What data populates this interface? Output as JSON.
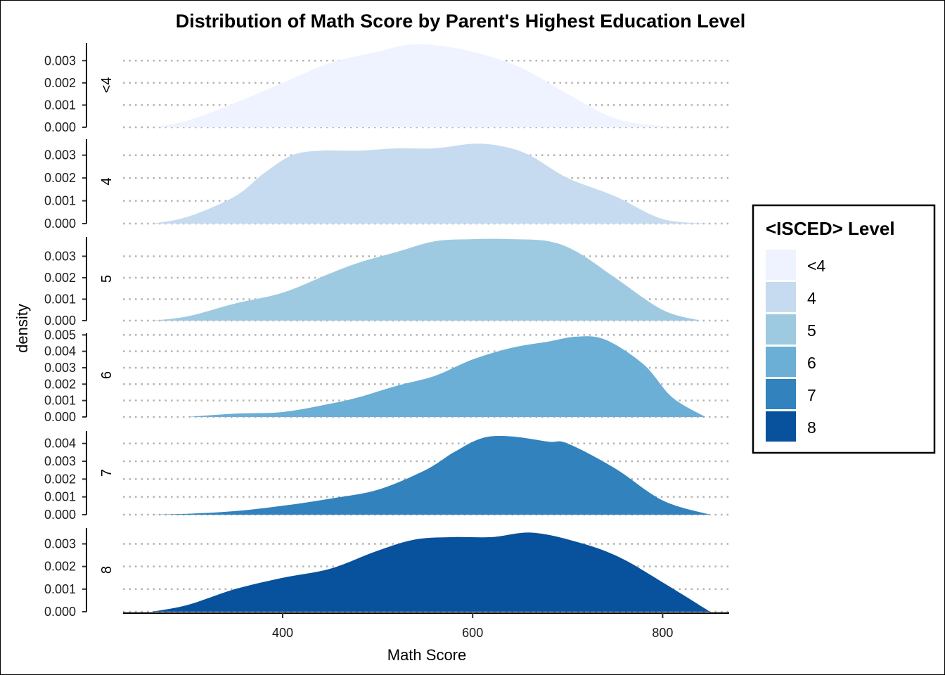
{
  "chart_data": {
    "type": "area",
    "title": "Distribution of Math Score by Parent's Highest Education Level",
    "xlabel": "Math Score",
    "ylabel": "density",
    "x_ticks": [
      400,
      600,
      800
    ],
    "xlim": [
      232,
      870
    ],
    "grid": "horizontal dotted",
    "legend": {
      "title": "<ISCED> Level",
      "position": "right",
      "entries": [
        {
          "label": "<4",
          "color": "#eff3ff"
        },
        {
          "label": "4",
          "color": "#c6dbef"
        },
        {
          "label": "5",
          "color": "#9ecae1"
        },
        {
          "label": "6",
          "color": "#6baed6"
        },
        {
          "label": "7",
          "color": "#3182bd"
        },
        {
          "label": "8",
          "color": "#08519c"
        }
      ]
    },
    "series": [
      {
        "name": "<4",
        "color": "#eff3ff",
        "ylim": [
          0,
          0.0038
        ],
        "y_ticks": [
          {
            "v": 0,
            "label": "0.000"
          },
          {
            "v": 0.001,
            "label": "0.001"
          },
          {
            "v": 0.002,
            "label": "0.002"
          },
          {
            "v": 0.003,
            "label": "0.003"
          }
        ],
        "x": [
          262,
          300,
          350,
          400,
          450,
          500,
          530,
          560,
          600,
          650,
          700,
          750,
          800,
          850
        ],
        "y": [
          0,
          0.0003,
          0.0011,
          0.002,
          0.0029,
          0.0034,
          0.0037,
          0.0037,
          0.0034,
          0.0027,
          0.0015,
          0.0004,
          5e-05,
          0
        ]
      },
      {
        "name": "4",
        "color": "#c6dbef",
        "ylim": [
          0,
          0.0037
        ],
        "y_ticks": [
          {
            "v": 0,
            "label": "0.000"
          },
          {
            "v": 0.001,
            "label": "0.001"
          },
          {
            "v": 0.002,
            "label": "0.002"
          },
          {
            "v": 0.003,
            "label": "0.003"
          }
        ],
        "x": [
          262,
          300,
          350,
          380,
          410,
          440,
          480,
          520,
          560,
          600,
          630,
          660,
          700,
          750,
          800,
          850
        ],
        "y": [
          0,
          0.0003,
          0.0012,
          0.0022,
          0.003,
          0.0032,
          0.0032,
          0.0033,
          0.0033,
          0.0035,
          0.0034,
          0.003,
          0.002,
          0.0012,
          0.0002,
          0
        ]
      },
      {
        "name": "5",
        "color": "#9ecae1",
        "ylim": [
          0,
          0.0039
        ],
        "y_ticks": [
          {
            "v": 0,
            "label": "0.000"
          },
          {
            "v": 0.001,
            "label": "0.001"
          },
          {
            "v": 0.002,
            "label": "0.002"
          },
          {
            "v": 0.003,
            "label": "0.003"
          }
        ],
        "x": [
          262,
          300,
          350,
          400,
          450,
          480,
          520,
          560,
          600,
          640,
          680,
          710,
          750,
          800,
          840
        ],
        "y": [
          0,
          0.0002,
          0.0008,
          0.0013,
          0.0022,
          0.0027,
          0.0032,
          0.0037,
          0.0038,
          0.0038,
          0.0037,
          0.0032,
          0.002,
          0.0005,
          0
        ]
      },
      {
        "name": "6",
        "color": "#6baed6",
        "ylim": [
          0,
          0.0051
        ],
        "y_ticks": [
          {
            "v": 0,
            "label": "0.000"
          },
          {
            "v": 0.001,
            "label": "0.001"
          },
          {
            "v": 0.002,
            "label": "0.002"
          },
          {
            "v": 0.003,
            "label": "0.003"
          },
          {
            "v": 0.004,
            "label": "0.004"
          },
          {
            "v": 0.005,
            "label": "0.005"
          }
        ],
        "x": [
          300,
          350,
          400,
          450,
          480,
          520,
          560,
          600,
          640,
          680,
          710,
          740,
          780,
          810,
          845
        ],
        "y": [
          0,
          0.0002,
          0.0003,
          0.0008,
          0.0012,
          0.0019,
          0.0025,
          0.0035,
          0.0042,
          0.0046,
          0.0049,
          0.0047,
          0.0032,
          0.0012,
          0
        ]
      },
      {
        "name": "7",
        "color": "#3182bd",
        "ylim": [
          0,
          0.0047
        ],
        "y_ticks": [
          {
            "v": 0,
            "label": "0.000"
          },
          {
            "v": 0.001,
            "label": "0.001"
          },
          {
            "v": 0.002,
            "label": "0.002"
          },
          {
            "v": 0.003,
            "label": "0.003"
          },
          {
            "v": 0.004,
            "label": "0.004"
          }
        ],
        "x": [
          262,
          300,
          350,
          400,
          450,
          500,
          550,
          580,
          610,
          640,
          680,
          700,
          750,
          800,
          850
        ],
        "y": [
          0,
          5e-05,
          0.0002,
          0.0005,
          0.0009,
          0.0014,
          0.0025,
          0.0035,
          0.0043,
          0.0044,
          0.0041,
          0.004,
          0.0026,
          0.0008,
          0
        ]
      },
      {
        "name": "8",
        "color": "#08519c",
        "ylim": [
          0,
          0.0037
        ],
        "y_ticks": [
          {
            "v": 0,
            "label": "0.000"
          },
          {
            "v": 0.001,
            "label": "0.001"
          },
          {
            "v": 0.002,
            "label": "0.002"
          },
          {
            "v": 0.003,
            "label": "0.003"
          }
        ],
        "x": [
          262,
          300,
          350,
          400,
          450,
          500,
          540,
          580,
          620,
          660,
          700,
          750,
          800,
          850
        ],
        "y": [
          0,
          0.0003,
          0.001,
          0.0015,
          0.0019,
          0.0027,
          0.0032,
          0.0033,
          0.0033,
          0.0035,
          0.0032,
          0.0025,
          0.0013,
          0
        ]
      }
    ]
  }
}
